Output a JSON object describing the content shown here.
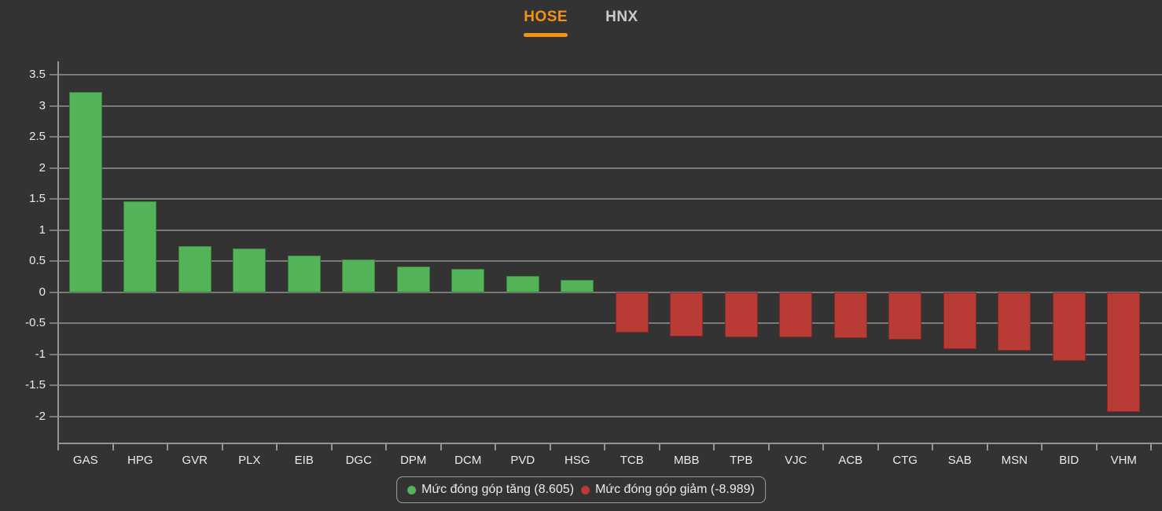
{
  "tabs": [
    {
      "label": "HOSE",
      "active": true
    },
    {
      "label": "HNX",
      "active": false
    }
  ],
  "chart_data": {
    "type": "bar",
    "title": "",
    "xlabel": "",
    "ylabel": "",
    "categories": [
      "GAS",
      "HPG",
      "GVR",
      "PLX",
      "EIB",
      "DGC",
      "DPM",
      "DCM",
      "PVD",
      "HSG",
      "TCB",
      "MBB",
      "TPB",
      "VJC",
      "ACB",
      "CTG",
      "SAB",
      "MSN",
      "BID",
      "VHM"
    ],
    "values": [
      3.22,
      1.47,
      0.75,
      0.71,
      0.59,
      0.53,
      0.42,
      0.38,
      0.26,
      0.2,
      -0.65,
      -0.71,
      -0.72,
      -0.73,
      -0.74,
      -0.76,
      -0.91,
      -0.94,
      -1.1,
      -1.93
    ],
    "yticks": [
      3.5,
      3,
      2.5,
      2,
      1.5,
      1,
      0.5,
      0,
      -0.5,
      -1,
      -1.5,
      -2
    ],
    "ylim": [
      -2.42,
      3.72
    ],
    "grid": true,
    "legend_position": "bottom",
    "positive_total": "8.605",
    "negative_total": "-8.989",
    "legend": [
      {
        "label": "Mức đóng góp tăng (8.605)",
        "series": "positive"
      },
      {
        "label": "Mức đóng góp giảm (-8.989)",
        "series": "negative"
      }
    ]
  },
  "colors": {
    "background": "#333333",
    "positive": "#54b258",
    "negative": "#b83b36",
    "accent": "#f39315",
    "tab_inactive": "#cbcbcb",
    "grid_line": "#7b7b7b",
    "axis_line": "#949494",
    "text": "#ebebeb"
  }
}
